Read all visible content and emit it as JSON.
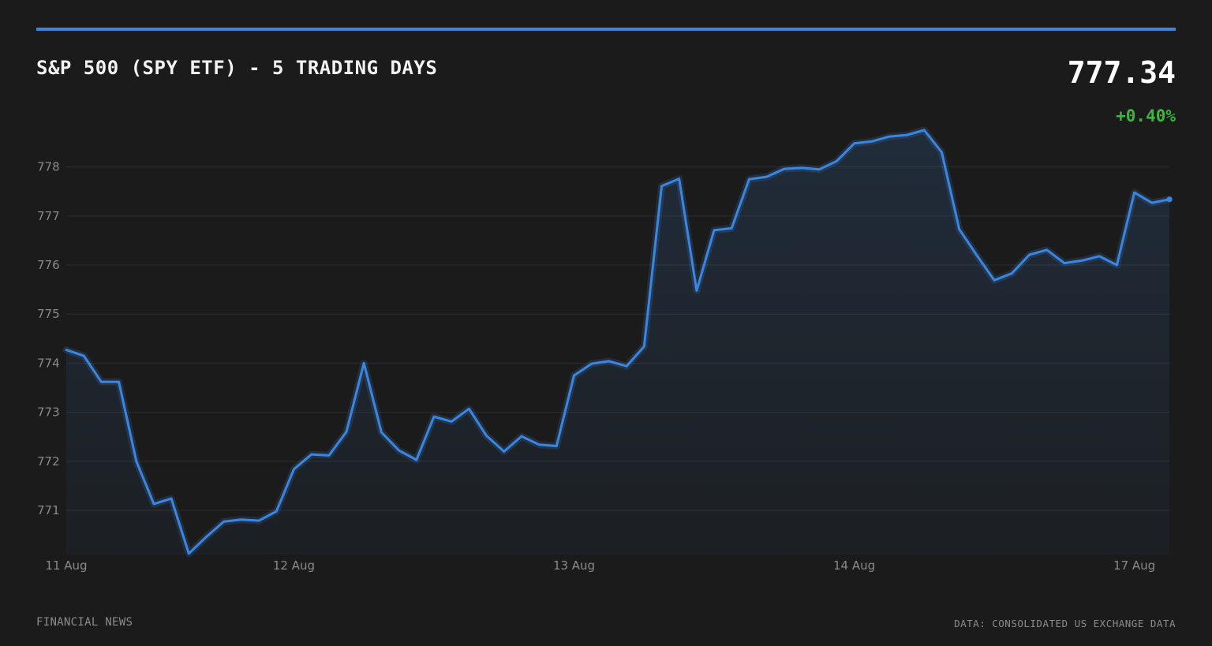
{
  "header": {
    "title": "S&P 500 (SPY ETF) - 5 TRADING DAYS",
    "price": "777.34",
    "change": "+0.40%"
  },
  "footer": {
    "source_left": "FINANCIAL NEWS",
    "source_right": "DATA: CONSOLIDATED US EXCHANGE DATA"
  },
  "colors": {
    "background": "#1b1b1b",
    "accent": "#3b86e0",
    "line": "#3b86e0",
    "positive": "#3cb73c",
    "grid": "#2e2e2e",
    "tick_text": "#8a8a8a"
  },
  "chart_data": {
    "type": "area",
    "title": "S&P 500 (SPY ETF) - 5 TRADING DAYS",
    "xlabel": "",
    "ylabel": "",
    "ylim": [
      770.1,
      778.75
    ],
    "yticks": [
      771,
      772,
      773,
      774,
      775,
      776,
      777,
      778
    ],
    "xticks": [
      {
        "label": "11 Aug",
        "index": 0
      },
      {
        "label": "12 Aug",
        "index": 13
      },
      {
        "label": "13 Aug",
        "index": 29
      },
      {
        "label": "14 Aug",
        "index": 45
      },
      {
        "label": "17 Aug",
        "index": 61
      }
    ],
    "grid": true,
    "series": [
      {
        "values": [
          774.27,
          774.15,
          773.62,
          773.62,
          772.0,
          771.13,
          771.24,
          770.12,
          770.46,
          770.77,
          770.81,
          770.79,
          770.98,
          771.84,
          772.14,
          772.12,
          772.6,
          774.0,
          772.59,
          772.22,
          772.03,
          772.91,
          772.81,
          773.07,
          772.52,
          772.2,
          772.51,
          772.34,
          772.31,
          773.75,
          773.99,
          774.04,
          773.94,
          774.34,
          777.61,
          777.76,
          775.48,
          776.71,
          776.75,
          777.75,
          777.8,
          777.96,
          777.98,
          777.95,
          778.12,
          778.48,
          778.52,
          778.62,
          778.65,
          778.75,
          778.3,
          776.73,
          776.2,
          775.69,
          775.83,
          776.21,
          776.31,
          776.04,
          776.09,
          776.18,
          776.0,
          777.48,
          777.27,
          777.34
        ]
      }
    ]
  }
}
